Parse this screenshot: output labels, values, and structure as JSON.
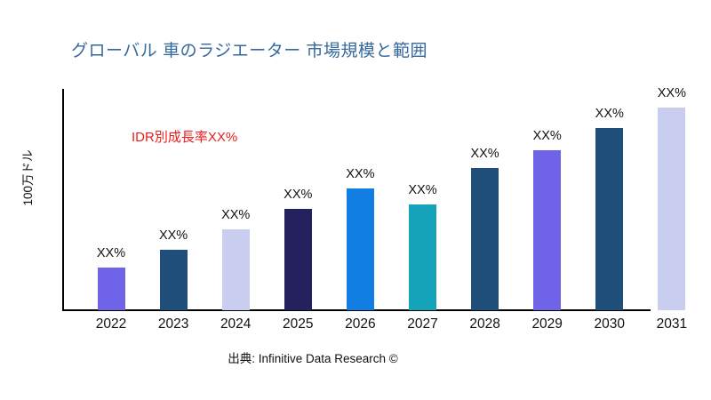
{
  "chart": {
    "title": "グローバル 車のラジエーター 市場規模と範囲",
    "title_color": "#35689D",
    "growth_note": "IDR別成長率XX%",
    "growth_note_color": "#ED1C1C",
    "ylabel": "100万ドル",
    "source": "出典: Infinitive Data Research ©"
  },
  "chart_data": {
    "type": "bar",
    "title": "グローバル 車のラジエーター 市場規模と範囲",
    "xlabel": "",
    "ylabel": "100万ドル",
    "annotation": "IDR別成長率XX%",
    "source": "出典: Infinitive Data Research ©",
    "grid": false,
    "legend": false,
    "value_labels_shown_as": "XX%",
    "values_are_relative_heights_max_100": true,
    "bars": [
      {
        "year": "2022",
        "label": "XX%",
        "value": 21,
        "color": "#6F63E8"
      },
      {
        "year": "2023",
        "label": "XX%",
        "value": 30,
        "color": "#1F4E7A"
      },
      {
        "year": "2024",
        "label": "XX%",
        "value": 40,
        "color": "#C9CEF1"
      },
      {
        "year": "2025",
        "label": "XX%",
        "value": 50,
        "color": "#25215E"
      },
      {
        "year": "2026",
        "label": "XX%",
        "value": 60,
        "color": "#117EE3"
      },
      {
        "year": "2027",
        "label": "XX%",
        "value": 52,
        "color": "#14A3B8"
      },
      {
        "year": "2028",
        "label": "XX%",
        "value": 70,
        "color": "#1F4E7A"
      },
      {
        "year": "2029",
        "label": "XX%",
        "value": 79,
        "color": "#6F63E8"
      },
      {
        "year": "2030",
        "label": "XX%",
        "value": 90,
        "color": "#1F4E7A"
      },
      {
        "year": "2031",
        "label": "XX%",
        "value": 100,
        "color": "#C9CEF1"
      }
    ]
  }
}
